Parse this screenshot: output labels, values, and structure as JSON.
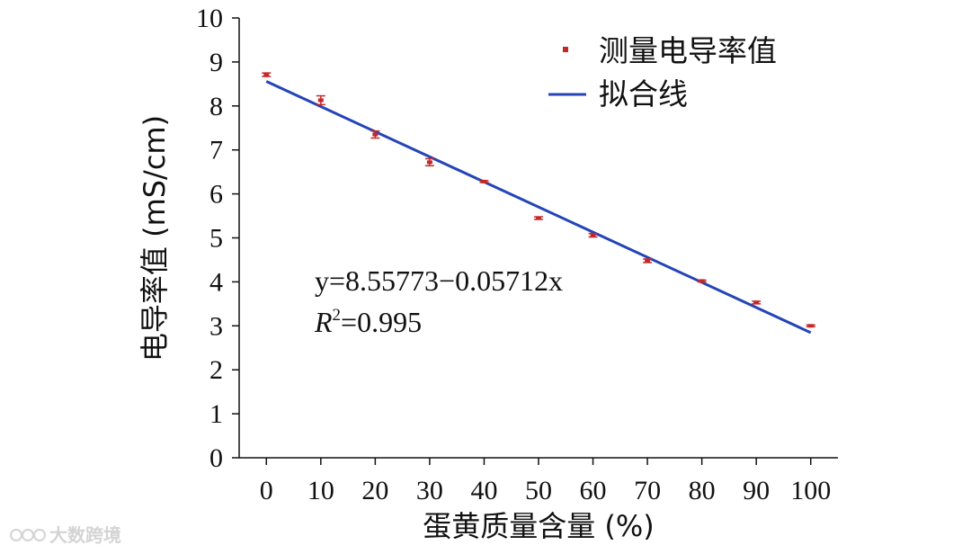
{
  "chart_data": {
    "type": "scatter",
    "title": "",
    "xlabel": "蛋黄质量含量 (%)",
    "ylabel": "电导率值 (mS/cm)",
    "xlim": [
      -5,
      105
    ],
    "ylim": [
      0,
      10
    ],
    "xticks": [
      "0",
      "10",
      "20",
      "30",
      "40",
      "50",
      "60",
      "70",
      "80",
      "90",
      "100"
    ],
    "yticks": [
      "0",
      "1",
      "2",
      "3",
      "4",
      "5",
      "6",
      "7",
      "8",
      "9",
      "10"
    ],
    "grid": false,
    "legend_position": "top-right",
    "series": [
      {
        "name": "测量电导率值",
        "kind": "points-with-error-bars",
        "color": "#c62828",
        "x": [
          0,
          10,
          20,
          30,
          40,
          50,
          60,
          70,
          80,
          90,
          100
        ],
        "y": [
          8.71,
          8.13,
          7.35,
          6.72,
          6.28,
          5.45,
          5.06,
          4.48,
          4.02,
          3.53,
          3.0
        ],
        "error": [
          0.04,
          0.1,
          0.08,
          0.08,
          0.02,
          0.03,
          0.04,
          0.04,
          0.02,
          0.03,
          0.02
        ]
      },
      {
        "name": "拟合线",
        "kind": "line",
        "color": "#2444b8",
        "intercept": 8.55773,
        "slope": -0.05712,
        "x_range": [
          0,
          100
        ]
      }
    ],
    "annotations": {
      "equation": "y=8.55773−0.05712x",
      "r2_symbol": "R",
      "r2_exponent": "2",
      "r2_value": "=0.995"
    }
  },
  "watermark": {
    "text": "大数跨境",
    "logo": "infinity-logo-icon"
  }
}
